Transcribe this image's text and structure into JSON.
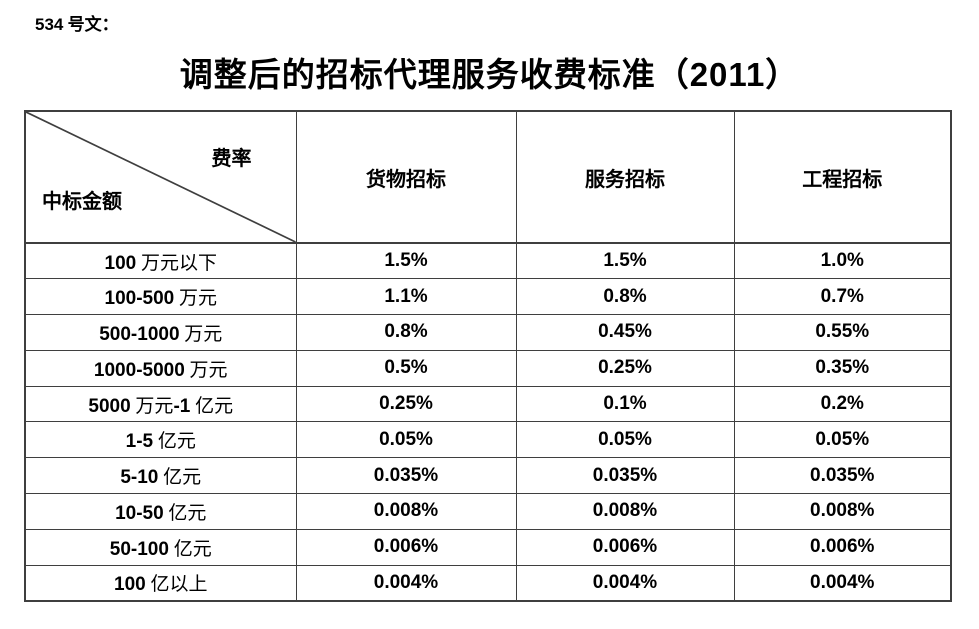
{
  "page": {
    "background": "#ffffff",
    "text_color": "#000000",
    "border_color": "#3f3f3f"
  },
  "doc_number": "534 号文：",
  "title": "调整后的招标代理服务收费标准（2011）",
  "table": {
    "corner": {
      "top_right": "费率",
      "bottom_left": "中标金额"
    },
    "columns": [
      "货物招标",
      "服务招标",
      "工程招标"
    ],
    "rows": [
      {
        "label": "100 万元以下",
        "values": [
          "1.5%",
          "1.5%",
          "1.0%"
        ]
      },
      {
        "label": "100-500 万元",
        "values": [
          "1.1%",
          "0.8%",
          "0.7%"
        ]
      },
      {
        "label": "500-1000 万元",
        "values": [
          "0.8%",
          "0.45%",
          "0.55%"
        ]
      },
      {
        "label": "1000-5000 万元",
        "values": [
          "0.5%",
          "0.25%",
          "0.35%"
        ]
      },
      {
        "label": "5000 万元-1 亿元",
        "values": [
          "0.25%",
          "0.1%",
          "0.2%"
        ]
      },
      {
        "label": "1-5 亿元",
        "values": [
          "0.05%",
          "0.05%",
          "0.05%"
        ]
      },
      {
        "label": "5-10 亿元",
        "values": [
          "0.035%",
          "0.035%",
          "0.035%"
        ]
      },
      {
        "label": "10-50 亿元",
        "values": [
          "0.008%",
          "0.008%",
          "0.008%"
        ]
      },
      {
        "label": "50-100 亿元",
        "values": [
          "0.006%",
          "0.006%",
          "0.006%"
        ]
      },
      {
        "label": "100 亿以上",
        "values": [
          "0.004%",
          "0.004%",
          "0.004%"
        ]
      }
    ]
  }
}
